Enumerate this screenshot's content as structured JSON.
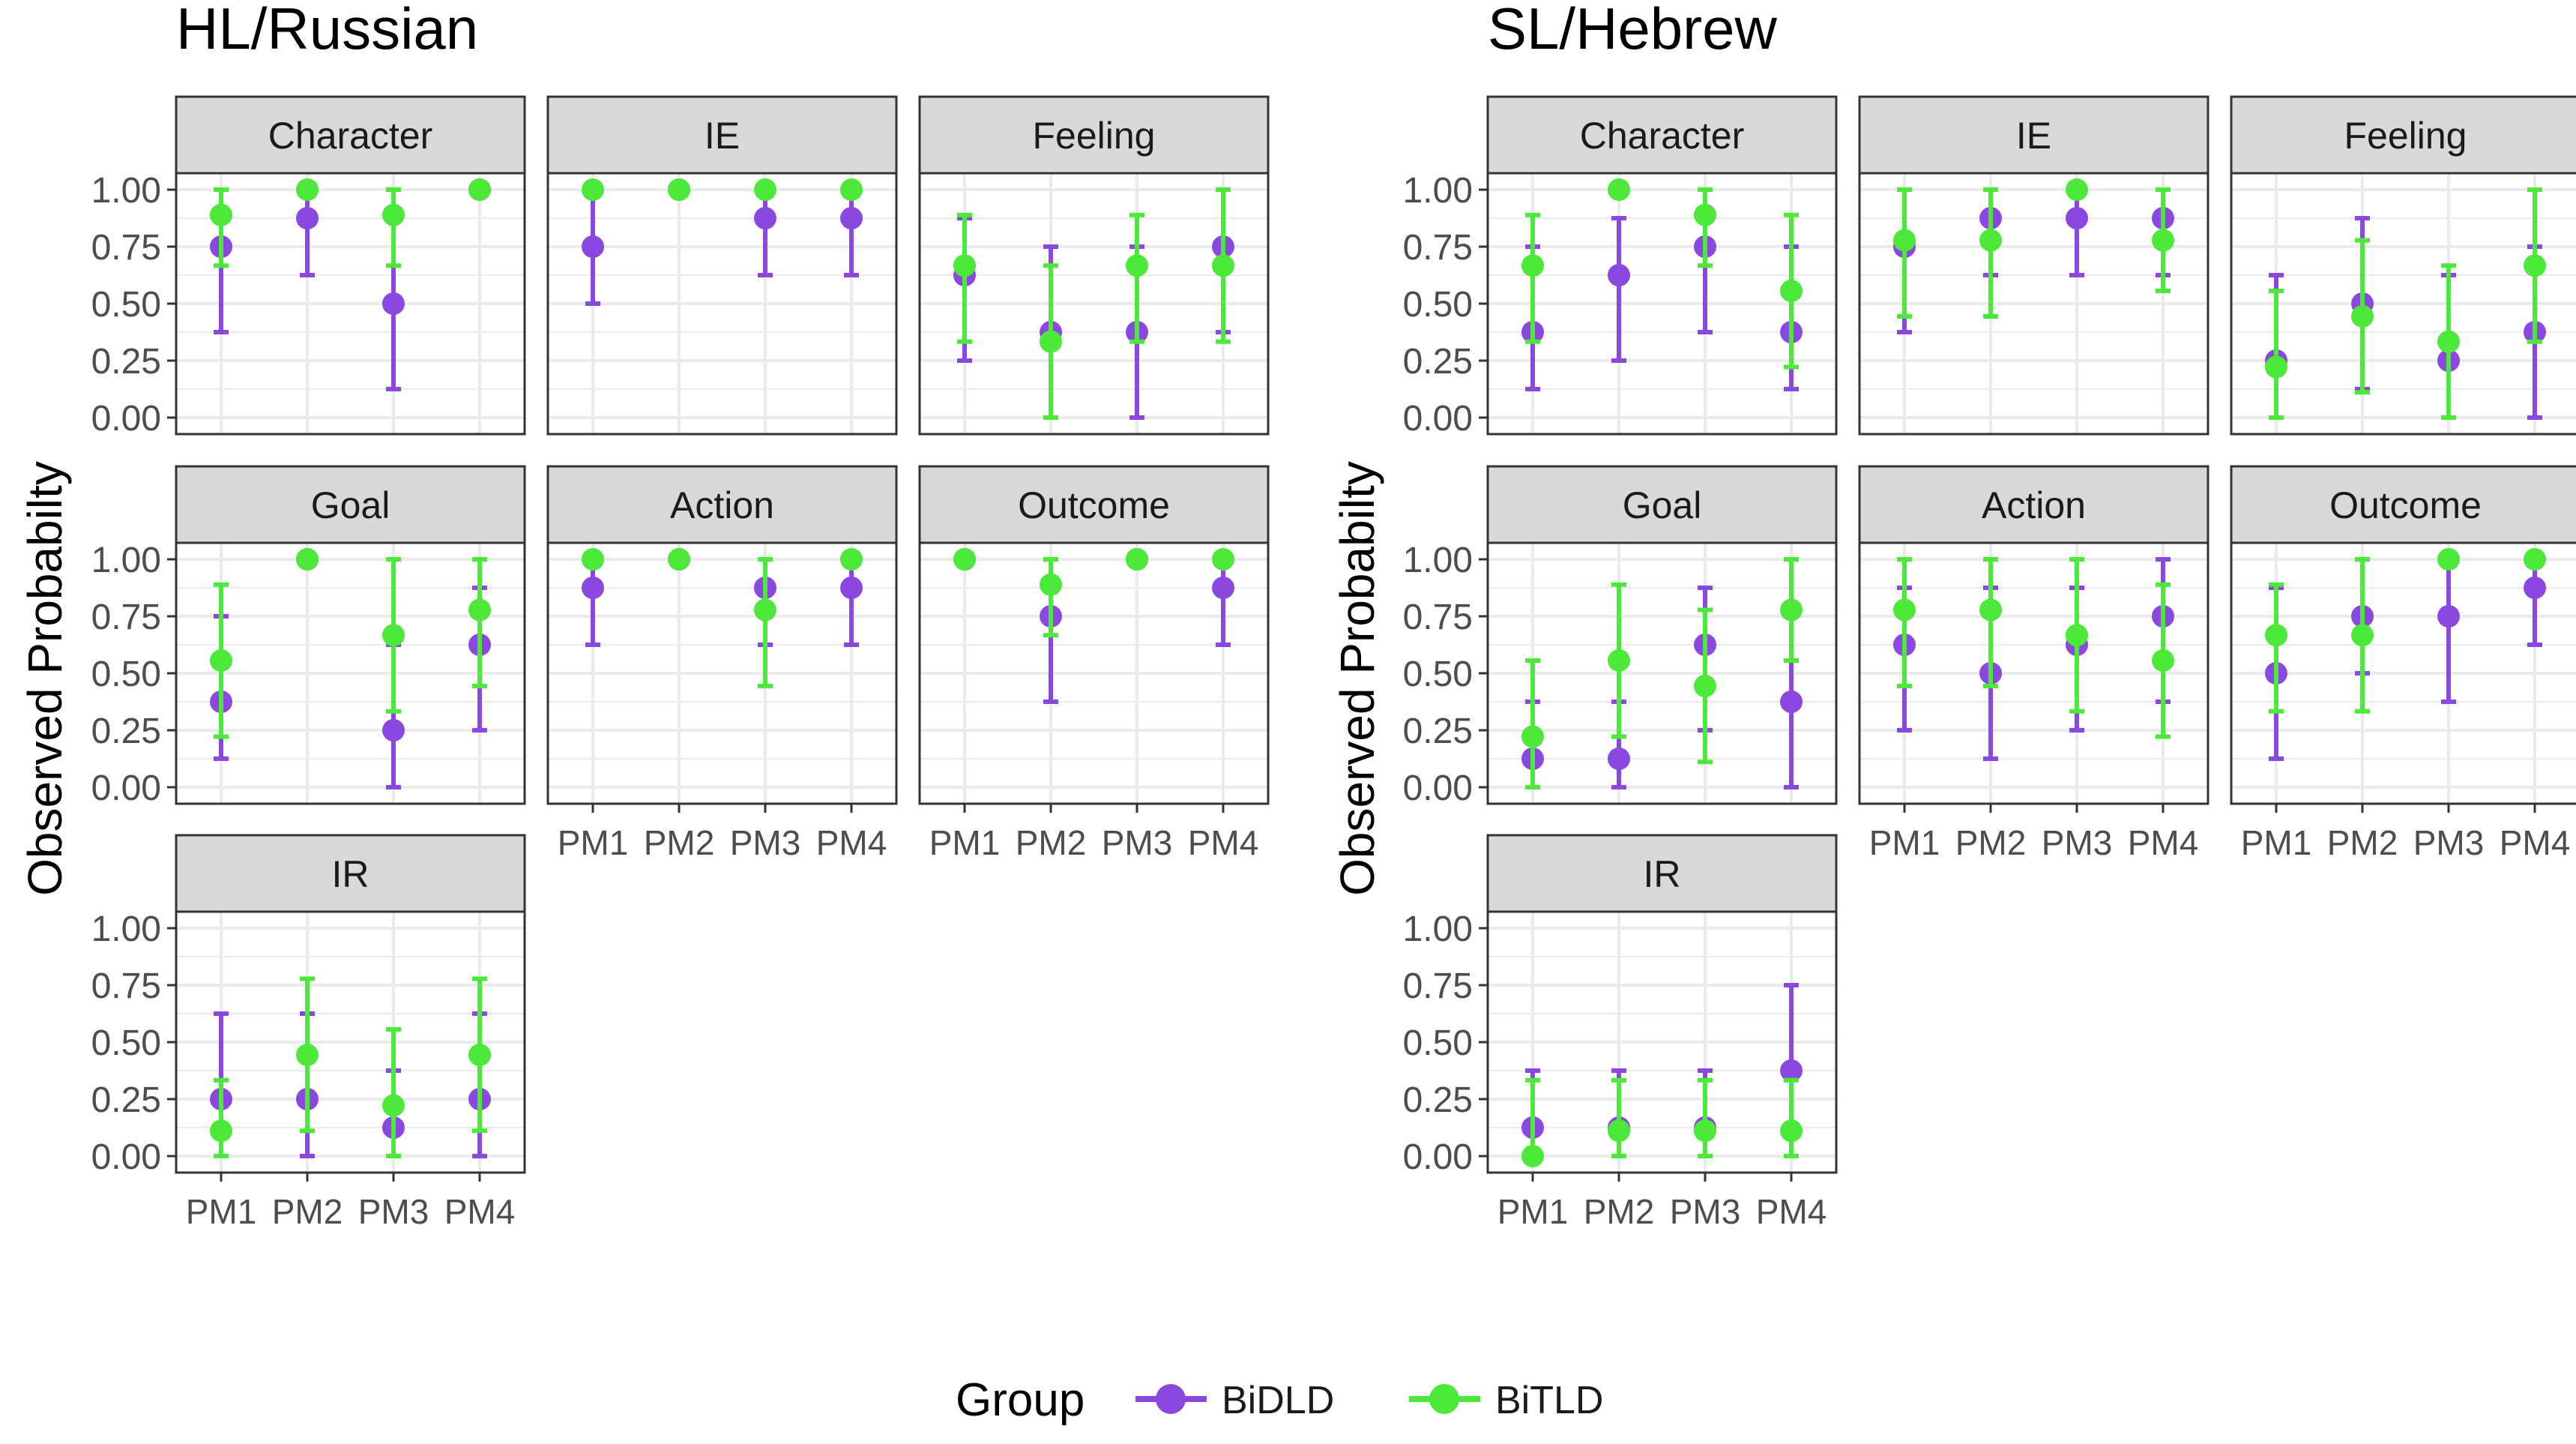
{
  "colors": {
    "BiDLD": "#8A48E0",
    "BiTLD": "#4CE83A",
    "strip_fill": "#D9D9D9",
    "grid": "#EBEBEB",
    "panel_border": "#333333",
    "text": "#1A1A1A",
    "tick_text": "#4D4D4D"
  },
  "legend": {
    "title": "Group",
    "items": [
      "BiDLD",
      "BiTLD"
    ]
  },
  "ylabel": "Observed Probabilty",
  "y_ticks": [
    "1.00",
    "0.75",
    "0.50",
    "0.25",
    "0.00"
  ],
  "x_ticks": [
    "PM1",
    "PM2",
    "PM3",
    "PM4"
  ],
  "chart_data": [
    {
      "type": "scatter",
      "title": "HL/Russian",
      "ylim": [
        0,
        1
      ],
      "grid": true,
      "x": [
        "PM1",
        "PM2",
        "PM3",
        "PM4"
      ],
      "facets": [
        {
          "name": "Character",
          "series": [
            {
              "name": "BiDLD",
              "values": [
                0.75,
                0.875,
                0.5,
                1.0
              ],
              "lower": [
                0.375,
                0.625,
                0.125,
                1.0
              ],
              "upper": [
                1.0,
                1.0,
                0.875,
                1.0
              ]
            },
            {
              "name": "BiTLD",
              "values": [
                0.889,
                1.0,
                0.889,
                1.0
              ],
              "lower": [
                0.667,
                1.0,
                0.667,
                1.0
              ],
              "upper": [
                1.0,
                1.0,
                1.0,
                1.0
              ]
            }
          ]
        },
        {
          "name": "IE",
          "series": [
            {
              "name": "BiDLD",
              "values": [
                0.75,
                1.0,
                0.875,
                0.875
              ],
              "lower": [
                0.5,
                1.0,
                0.625,
                0.625
              ],
              "upper": [
                1.0,
                1.0,
                1.0,
                1.0
              ]
            },
            {
              "name": "BiTLD",
              "values": [
                1.0,
                1.0,
                1.0,
                1.0
              ],
              "lower": [
                1.0,
                1.0,
                1.0,
                1.0
              ],
              "upper": [
                1.0,
                1.0,
                1.0,
                1.0
              ]
            }
          ]
        },
        {
          "name": "Feeling",
          "series": [
            {
              "name": "BiDLD",
              "values": [
                0.625,
                0.375,
                0.375,
                0.75
              ],
              "lower": [
                0.25,
                0.0,
                0.0,
                0.375
              ],
              "upper": [
                0.875,
                0.75,
                0.75,
                1.0
              ]
            },
            {
              "name": "BiTLD",
              "values": [
                0.667,
                0.333,
                0.667,
                0.667
              ],
              "lower": [
                0.333,
                0.0,
                0.333,
                0.333
              ],
              "upper": [
                0.889,
                0.667,
                0.889,
                1.0
              ]
            }
          ]
        },
        {
          "name": "Goal",
          "series": [
            {
              "name": "BiDLD",
              "values": [
                0.375,
                1.0,
                0.25,
                0.625
              ],
              "lower": [
                0.125,
                1.0,
                0.0,
                0.25
              ],
              "upper": [
                0.75,
                1.0,
                0.625,
                0.875
              ]
            },
            {
              "name": "BiTLD",
              "values": [
                0.556,
                1.0,
                0.667,
                0.778
              ],
              "lower": [
                0.222,
                1.0,
                0.333,
                0.444
              ],
              "upper": [
                0.889,
                1.0,
                1.0,
                1.0
              ]
            }
          ]
        },
        {
          "name": "Action",
          "series": [
            {
              "name": "BiDLD",
              "values": [
                0.875,
                1.0,
                0.875,
                0.875
              ],
              "lower": [
                0.625,
                1.0,
                0.625,
                0.625
              ],
              "upper": [
                1.0,
                1.0,
                1.0,
                1.0
              ]
            },
            {
              "name": "BiTLD",
              "values": [
                1.0,
                1.0,
                0.778,
                1.0
              ],
              "lower": [
                1.0,
                1.0,
                0.444,
                1.0
              ],
              "upper": [
                1.0,
                1.0,
                1.0,
                1.0
              ]
            }
          ]
        },
        {
          "name": "Outcome",
          "series": [
            {
              "name": "BiDLD",
              "values": [
                1.0,
                0.75,
                1.0,
                0.875
              ],
              "lower": [
                1.0,
                0.375,
                1.0,
                0.625
              ],
              "upper": [
                1.0,
                1.0,
                1.0,
                1.0
              ]
            },
            {
              "name": "BiTLD",
              "values": [
                1.0,
                0.889,
                1.0,
                1.0
              ],
              "lower": [
                1.0,
                0.667,
                1.0,
                1.0
              ],
              "upper": [
                1.0,
                1.0,
                1.0,
                1.0
              ]
            }
          ]
        },
        {
          "name": "IR",
          "series": [
            {
              "name": "BiDLD",
              "values": [
                0.25,
                0.25,
                0.125,
                0.25
              ],
              "lower": [
                0.0,
                0.0,
                0.0,
                0.0
              ],
              "upper": [
                0.625,
                0.625,
                0.375,
                0.625
              ]
            },
            {
              "name": "BiTLD",
              "values": [
                0.111,
                0.444,
                0.222,
                0.444
              ],
              "lower": [
                0.0,
                0.111,
                0.0,
                0.111
              ],
              "upper": [
                0.333,
                0.778,
                0.556,
                0.778
              ]
            }
          ]
        }
      ]
    },
    {
      "type": "scatter",
      "title": "SL/Hebrew",
      "ylim": [
        0,
        1
      ],
      "grid": true,
      "x": [
        "PM1",
        "PM2",
        "PM3",
        "PM4"
      ],
      "facets": [
        {
          "name": "Character",
          "series": [
            {
              "name": "BiDLD",
              "values": [
                0.375,
                0.625,
                0.75,
                0.375
              ],
              "lower": [
                0.125,
                0.25,
                0.375,
                0.125
              ],
              "upper": [
                0.75,
                0.875,
                1.0,
                0.75
              ]
            },
            {
              "name": "BiTLD",
              "values": [
                0.667,
                1.0,
                0.889,
                0.556
              ],
              "lower": [
                0.333,
                1.0,
                0.667,
                0.222
              ],
              "upper": [
                0.889,
                1.0,
                1.0,
                0.889
              ]
            }
          ]
        },
        {
          "name": "IE",
          "series": [
            {
              "name": "BiDLD",
              "values": [
                0.75,
                0.875,
                0.875,
                0.875
              ],
              "lower": [
                0.375,
                0.625,
                0.625,
                0.625
              ],
              "upper": [
                1.0,
                1.0,
                1.0,
                1.0
              ]
            },
            {
              "name": "BiTLD",
              "values": [
                0.778,
                0.778,
                1.0,
                0.778
              ],
              "lower": [
                0.444,
                0.444,
                1.0,
                0.556
              ],
              "upper": [
                1.0,
                1.0,
                1.0,
                1.0
              ]
            }
          ]
        },
        {
          "name": "Feeling",
          "series": [
            {
              "name": "BiDLD",
              "values": [
                0.25,
                0.5,
                0.25,
                0.375
              ],
              "lower": [
                0.0,
                0.125,
                0.0,
                0.0
              ],
              "upper": [
                0.625,
                0.875,
                0.625,
                0.75
              ]
            },
            {
              "name": "BiTLD",
              "values": [
                0.222,
                0.444,
                0.333,
                0.667
              ],
              "lower": [
                0.0,
                0.111,
                0.0,
                0.333
              ],
              "upper": [
                0.556,
                0.778,
                0.667,
                1.0
              ]
            }
          ]
        },
        {
          "name": "Goal",
          "series": [
            {
              "name": "BiDLD",
              "values": [
                0.125,
                0.125,
                0.625,
                0.375
              ],
              "lower": [
                0.0,
                0.0,
                0.25,
                0.0
              ],
              "upper": [
                0.375,
                0.375,
                0.875,
                0.75
              ]
            },
            {
              "name": "BiTLD",
              "values": [
                0.222,
                0.556,
                0.444,
                0.778
              ],
              "lower": [
                0.0,
                0.222,
                0.111,
                0.556
              ],
              "upper": [
                0.556,
                0.889,
                0.778,
                1.0
              ]
            }
          ]
        },
        {
          "name": "Action",
          "series": [
            {
              "name": "BiDLD",
              "values": [
                0.625,
                0.5,
                0.625,
                0.75
              ],
              "lower": [
                0.25,
                0.125,
                0.25,
                0.375
              ],
              "upper": [
                0.875,
                0.875,
                0.875,
                1.0
              ]
            },
            {
              "name": "BiTLD",
              "values": [
                0.778,
                0.778,
                0.667,
                0.556
              ],
              "lower": [
                0.444,
                0.444,
                0.333,
                0.222
              ],
              "upper": [
                1.0,
                1.0,
                1.0,
                0.889
              ]
            }
          ]
        },
        {
          "name": "Outcome",
          "series": [
            {
              "name": "BiDLD",
              "values": [
                0.5,
                0.75,
                0.75,
                0.875
              ],
              "lower": [
                0.125,
                0.5,
                0.375,
                0.625
              ],
              "upper": [
                0.875,
                1.0,
                1.0,
                1.0
              ]
            },
            {
              "name": "BiTLD",
              "values": [
                0.667,
                0.667,
                1.0,
                1.0
              ],
              "lower": [
                0.333,
                0.333,
                1.0,
                1.0
              ],
              "upper": [
                0.889,
                1.0,
                1.0,
                1.0
              ]
            }
          ]
        },
        {
          "name": "IR",
          "series": [
            {
              "name": "BiDLD",
              "values": [
                0.125,
                0.125,
                0.125,
                0.375
              ],
              "lower": [
                0.0,
                0.0,
                0.0,
                0.0
              ],
              "upper": [
                0.375,
                0.375,
                0.375,
                0.75
              ]
            },
            {
              "name": "BiTLD",
              "values": [
                0.0,
                0.111,
                0.111,
                0.111
              ],
              "lower": [
                0.0,
                0.0,
                0.0,
                0.0
              ],
              "upper": [
                0.333,
                0.333,
                0.333,
                0.333
              ]
            }
          ]
        }
      ]
    }
  ]
}
